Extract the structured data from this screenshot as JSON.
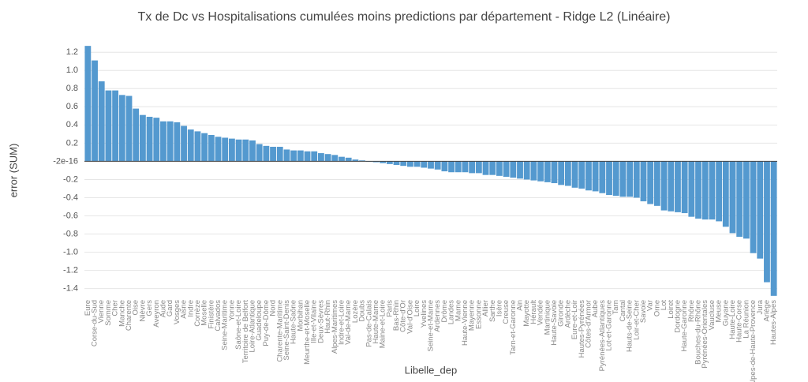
{
  "chart_data": {
    "type": "bar",
    "title": "Tx de Dc vs Hospitalisations cumulées moins predictions par département - Ridge L2 (Linéaire)",
    "x_label": "Libelle_dep",
    "y_label": "error (SUM)",
    "color": "#5499cf",
    "grid": true,
    "ylim": [
      -1.49,
      1.28
    ],
    "yticks": [
      1.2,
      {
        "value": 1.0,
        "label": "1.0"
      },
      0.8,
      0.6,
      0.4,
      0.2,
      -2e-16,
      -0.2,
      -0.4,
      -0.6,
      -0.8,
      {
        "value": -1.0,
        "label": "-1.0"
      },
      -1.2,
      -1.4
    ],
    "categories": [
      "Eure",
      "Corse-du-Sud",
      "Vienne",
      "Somme",
      "Cher",
      "Manche",
      "Charente",
      "Oise",
      "Nièvre",
      "Gers",
      "Aveyron",
      "Aude",
      "Gard",
      "Vosges",
      "Aisne",
      "Indre",
      "Corrèze",
      "Moselle",
      "Finistère",
      "Calvados",
      "Seine-Maritime",
      "Yonne",
      "Saône-et-Loire",
      "Territoire de Belfort",
      "Loire-Atlantique",
      "Guadeloupe",
      "Puy-de-Dôme",
      "Nord",
      "Charente-Maritime",
      "Seine-Saint-Denis",
      "Haute-Saône",
      "Morbihan",
      "Meurthe-et-Moselle",
      "Ille-et-Vilaine",
      "Deux-Sèvres",
      "Haut-Rhin",
      "Alpes-Maritimes",
      "Indre-et-Loire",
      "Val-de-Marne",
      "Lozère",
      "Doubs",
      "Pas-de-Calais",
      "Haute-Marne",
      "Maine-et-Loire",
      "Paris",
      "Bas-Rhin",
      "Côte-d'Or",
      "Val-d'Oise",
      "Loire",
      "Yvelines",
      "Seine-et-Marne",
      "Ardennes",
      "Drôme",
      "Landes",
      "Marne",
      "Haute-Vienne",
      "Mayenne",
      "Essonne",
      "Allier",
      "Sarthe",
      "Isère",
      "Creuse",
      "Tarn-et-Garonne",
      "Ain",
      "Mayotte",
      "Hérault",
      "Vendée",
      "Martinique",
      "Haute-Savoie",
      "Gironde",
      "Ardèche",
      "Eure-et-Loir",
      "Hautes-Pyrénées",
      "Côtes-d'Armor",
      "Aube",
      "Pyrénées-Atlantiques",
      "Lot-et-Garonne",
      "Tarn",
      "Cantal",
      "Hauts-de-Seine",
      "Loir-et-Cher",
      "Savoie",
      "Var",
      "Orne",
      "Lot",
      "Loiret",
      "Dordogne",
      "Haute-Garonne",
      "Rhône",
      "Bouches-du-Rhône",
      "Pyrénées-Orientales",
      "Vaucluse",
      "Meuse",
      "Guyane",
      "Haute-Loire",
      "Haute-Corse",
      "La Réunion",
      "Alpes-de-Haute-Provence",
      "Jura",
      "Ariège",
      "Hautes-Alpes"
    ],
    "values": [
      1.27,
      1.11,
      0.88,
      0.78,
      0.78,
      0.73,
      0.72,
      0.58,
      0.51,
      0.49,
      0.48,
      0.44,
      0.44,
      0.43,
      0.39,
      0.35,
      0.33,
      0.31,
      0.29,
      0.27,
      0.26,
      0.25,
      0.24,
      0.24,
      0.23,
      0.19,
      0.17,
      0.16,
      0.16,
      0.13,
      0.12,
      0.12,
      0.11,
      0.11,
      0.09,
      0.08,
      0.07,
      0.05,
      0.04,
      0.02,
      0.01,
      -0.005,
      -0.01,
      -0.02,
      -0.03,
      -0.04,
      -0.05,
      -0.06,
      -0.06,
      -0.07,
      -0.08,
      -0.09,
      -0.11,
      -0.12,
      -0.12,
      -0.12,
      -0.13,
      -0.13,
      -0.15,
      -0.15,
      -0.16,
      -0.17,
      -0.18,
      -0.19,
      -0.2,
      -0.21,
      -0.22,
      -0.23,
      -0.24,
      -0.26,
      -0.27,
      -0.29,
      -0.3,
      -0.32,
      -0.33,
      -0.35,
      -0.37,
      -0.38,
      -0.39,
      -0.39,
      -0.4,
      -0.44,
      -0.47,
      -0.49,
      -0.54,
      -0.55,
      -0.56,
      -0.57,
      -0.61,
      -0.63,
      -0.64,
      -0.64,
      -0.66,
      -0.72,
      -0.79,
      -0.83,
      -0.85,
      -1.01,
      -1.07,
      -1.33,
      -1.48
    ]
  }
}
